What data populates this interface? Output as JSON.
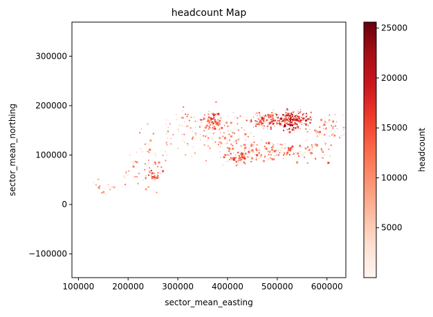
{
  "chart_data": {
    "type": "heatmap",
    "title": "headcount Map",
    "xlabel": "sector_mean_easting",
    "ylabel": "sector_mean_northing",
    "xlim": [
      87000,
      638000
    ],
    "ylim": [
      -148000,
      369000
    ],
    "x_ticks": [
      100000,
      200000,
      300000,
      400000,
      500000,
      600000
    ],
    "x_tick_labels": [
      "100000",
      "200000",
      "300000",
      "400000",
      "500000",
      "600000"
    ],
    "y_ticks": [
      -100000,
      0,
      100000,
      200000,
      300000
    ],
    "y_tick_labels": [
      "−100000",
      "0",
      "100000",
      "200000",
      "300000"
    ],
    "colorbar": {
      "label": "headcount",
      "range": [
        0,
        25600
      ],
      "ticks": [
        5000,
        10000,
        15000,
        20000,
        25000
      ],
      "tick_labels": [
        "5000",
        "10000",
        "15000",
        "20000",
        "25000"
      ],
      "colormap": "Reds",
      "colors": [
        "#fff5f0",
        "#fee0d2",
        "#fcbba1",
        "#fc9272",
        "#fb6a4a",
        "#ef3b2c",
        "#cb181d",
        "#a50f15",
        "#67000d"
      ]
    },
    "grid": false,
    "clusters": [
      {
        "x": 530000,
        "y": 172000,
        "spread_x": 18000,
        "spread_y": 9000,
        "count": 220,
        "weight": 0.75
      },
      {
        "x": 470000,
        "y": 172000,
        "spread_x": 16000,
        "spread_y": 8000,
        "count": 110,
        "weight": 0.55
      },
      {
        "x": 365000,
        "y": 172000,
        "spread_x": 9000,
        "spread_y": 9000,
        "count": 70,
        "weight": 0.5
      },
      {
        "x": 420000,
        "y": 96000,
        "spread_x": 16000,
        "spread_y": 5000,
        "count": 60,
        "weight": 0.45
      },
      {
        "x": 460000,
        "y": 110000,
        "spread_x": 30000,
        "spread_y": 12000,
        "count": 90,
        "weight": 0.4
      },
      {
        "x": 530000,
        "y": 108000,
        "spread_x": 35000,
        "spread_y": 10000,
        "count": 70,
        "weight": 0.4
      },
      {
        "x": 600000,
        "y": 152000,
        "spread_x": 20000,
        "spread_y": 18000,
        "count": 70,
        "weight": 0.35
      },
      {
        "x": 320000,
        "y": 150000,
        "spread_x": 25000,
        "spread_y": 22000,
        "count": 60,
        "weight": 0.3
      },
      {
        "x": 390000,
        "y": 140000,
        "spread_x": 25000,
        "spread_y": 25000,
        "count": 80,
        "weight": 0.3
      },
      {
        "x": 255000,
        "y": 58000,
        "spread_x": 8000,
        "spread_y": 5000,
        "count": 25,
        "weight": 0.5
      },
      {
        "x": 250000,
        "y": 90000,
        "spread_x": 30000,
        "spread_y": 25000,
        "count": 45,
        "weight": 0.25
      },
      {
        "x": 195000,
        "y": 55000,
        "spread_x": 25000,
        "spread_y": 15000,
        "count": 25,
        "weight": 0.25
      },
      {
        "x": 150000,
        "y": 32000,
        "spread_x": 12000,
        "spread_y": 6000,
        "count": 12,
        "weight": 0.2
      }
    ]
  }
}
